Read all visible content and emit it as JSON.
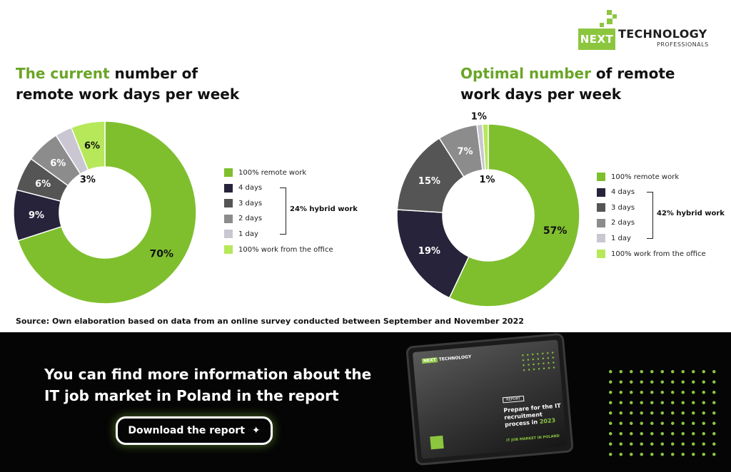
{
  "brand": {
    "logo_word1": "NEXT",
    "logo_word2": "TECHNOLOGY",
    "logo_sub": "PROFESSIONALS",
    "accent_color": "#8cc63f"
  },
  "chart_data": [
    {
      "type": "pie",
      "variant": "donut",
      "title_highlight": "The current",
      "title_rest": " number of remote work days per week",
      "categories": [
        "100% remote work",
        "4 days",
        "3 days",
        "2 days",
        "1 day",
        "100% work from the office"
      ],
      "values": [
        70,
        9,
        6,
        6,
        3,
        6
      ],
      "data_labels": [
        "70%",
        "9%",
        "6%",
        "6%",
        "3%",
        "6%"
      ],
      "colors": [
        "#7fbf2e",
        "#26233a",
        "#555555",
        "#8c8c8c",
        "#cac6d2",
        "#b6e85a"
      ],
      "hybrid_label": "24% hybrid work",
      "legend_position": "right"
    },
    {
      "type": "pie",
      "variant": "donut",
      "title_highlight": "Optimal number",
      "title_rest": " of remote work days per week",
      "categories": [
        "100% remote work",
        "4 days",
        "3 days",
        "2 days",
        "1 day",
        "100% work from the office"
      ],
      "values": [
        57,
        19,
        15,
        7,
        1,
        1
      ],
      "data_labels": [
        "57%",
        "19%",
        "15%",
        "7%",
        "1%",
        "1%"
      ],
      "colors": [
        "#7fbf2e",
        "#26233a",
        "#555555",
        "#8c8c8c",
        "#cac6d2",
        "#b6e85a"
      ],
      "hybrid_label": "42% hybrid work",
      "legend_position": "right"
    }
  ],
  "source_note": "Source: Own elaboration based on data from an online survey conducted between September and November 2022",
  "banner": {
    "text": "You can find more information about the IT job market in Poland in the report",
    "button_label": "Download the report",
    "tablet": {
      "logo_word1": "NEXT",
      "logo_word2": "TECHNOLOGY",
      "tag": "REPORT",
      "headline": "Prepare for the IT recruitment process in",
      "year": "2023",
      "subline": "IT JOB MARKET IN POLAND"
    }
  }
}
